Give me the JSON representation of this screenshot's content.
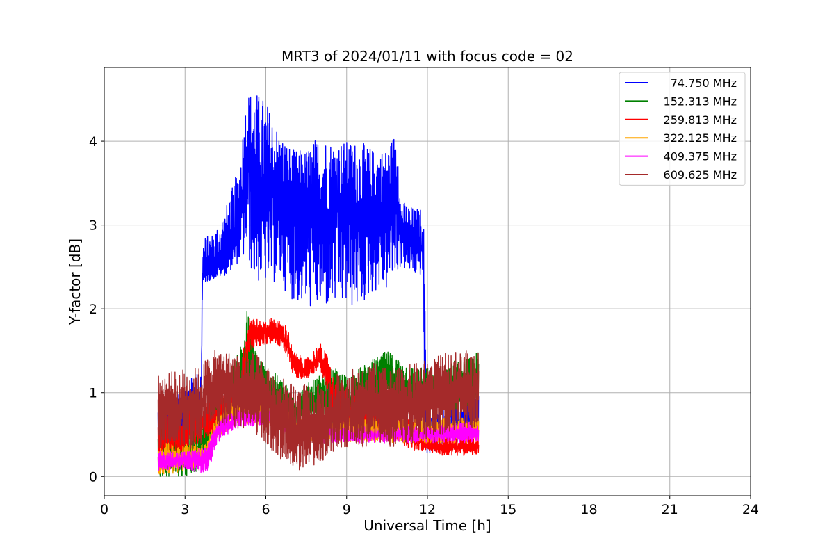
{
  "chart_data": {
    "type": "line",
    "title": "MRT3 of 2024/01/11 with focus code = 02",
    "xlabel": "Universal Time [h]",
    "ylabel": "Y-factor [dB]",
    "xlim": [
      0,
      24
    ],
    "ylim": [
      -0.23,
      4.88
    ],
    "x_ticks": [
      0,
      3,
      6,
      9,
      12,
      15,
      18,
      21,
      24
    ],
    "y_ticks": [
      0,
      1,
      2,
      3,
      4
    ],
    "grid": true,
    "legend_position": "top-right",
    "series": [
      {
        "name": "74.750 MHz",
        "color": "#0000ff",
        "x": [
          2.0,
          3.0,
          3.6,
          3.65,
          4.0,
          4.5,
          5.0,
          5.3,
          5.6,
          6.0,
          6.5,
          7.0,
          7.5,
          8.0,
          8.5,
          9.0,
          9.5,
          10.0,
          10.5,
          10.9,
          11.0,
          11.5,
          11.85,
          11.9,
          12.0,
          12.5,
          13.0,
          13.5,
          13.9
        ],
        "y": [
          0.5,
          0.7,
          0.9,
          2.4,
          2.5,
          2.6,
          3.0,
          3.8,
          3.5,
          3.3,
          3.4,
          3.1,
          3.2,
          3.0,
          3.2,
          3.3,
          3.1,
          3.2,
          3.3,
          3.4,
          2.9,
          2.8,
          2.7,
          0.8,
          0.4,
          0.5,
          0.6,
          0.7,
          0.8
        ],
        "min": [
          0.1,
          0.3,
          0.5,
          2.3,
          2.35,
          2.4,
          2.55,
          2.6,
          2.3,
          2.3,
          2.3,
          2.1,
          2.0,
          2.0,
          2.0,
          2.0,
          2.0,
          2.2,
          2.2,
          2.4,
          2.5,
          2.4,
          2.4,
          0.4,
          0.25,
          0.35,
          0.4,
          0.45,
          0.5
        ],
        "max": [
          0.9,
          1.1,
          1.3,
          2.85,
          2.9,
          3.2,
          3.7,
          4.6,
          4.6,
          4.5,
          4.1,
          3.9,
          3.9,
          4.1,
          4.0,
          4.0,
          4.0,
          3.9,
          3.9,
          4.2,
          3.3,
          3.2,
          3.2,
          2.2,
          0.7,
          0.8,
          0.9,
          0.95,
          1.0
        ]
      },
      {
        "name": "152.313 MHz",
        "color": "#008000",
        "x": [
          2.0,
          3.0,
          3.5,
          4.0,
          4.5,
          5.0,
          5.3,
          5.6,
          6.0,
          6.5,
          7.0,
          7.5,
          8.0,
          8.5,
          9.0,
          9.5,
          10.0,
          10.5,
          11.0,
          11.5,
          12.0,
          12.5,
          13.0,
          13.5,
          13.9
        ],
        "y": [
          0.3,
          0.2,
          0.3,
          0.6,
          0.8,
          1.0,
          1.4,
          1.2,
          1.0,
          0.9,
          0.8,
          0.8,
          0.9,
          0.9,
          0.9,
          1.0,
          1.1,
          1.2,
          1.1,
          1.0,
          1.0,
          1.0,
          1.1,
          1.1,
          1.2
        ],
        "min": [
          0.0,
          0.0,
          0.05,
          0.4,
          0.6,
          0.7,
          0.9,
          0.8,
          0.7,
          0.6,
          0.6,
          0.6,
          0.6,
          0.6,
          0.7,
          0.7,
          0.8,
          0.9,
          0.8,
          0.7,
          0.8,
          0.8,
          0.8,
          0.8,
          0.9
        ],
        "max": [
          0.8,
          0.6,
          0.7,
          0.9,
          1.1,
          1.5,
          2.0,
          1.6,
          1.3,
          1.2,
          1.0,
          1.1,
          1.2,
          1.3,
          1.2,
          1.3,
          1.4,
          1.5,
          1.4,
          1.3,
          1.3,
          1.3,
          1.4,
          1.4,
          1.5
        ]
      },
      {
        "name": "259.813 MHz",
        "color": "#ff0000",
        "x": [
          2.0,
          3.0,
          3.5,
          4.0,
          4.5,
          5.0,
          5.4,
          5.8,
          6.3,
          6.8,
          7.0,
          7.5,
          8.0,
          8.3,
          8.5,
          9.0,
          9.5,
          10.0,
          10.5,
          11.0,
          11.5,
          12.0,
          12.5,
          13.0,
          13.5,
          13.9
        ],
        "y": [
          0.4,
          0.5,
          0.6,
          0.7,
          0.8,
          0.9,
          1.75,
          1.7,
          1.75,
          1.6,
          1.35,
          1.25,
          1.4,
          1.2,
          0.9,
          0.8,
          0.7,
          0.65,
          0.6,
          0.55,
          0.45,
          0.4,
          0.35,
          0.35,
          0.35,
          0.35
        ],
        "min": [
          0.2,
          0.3,
          0.4,
          0.5,
          0.6,
          0.7,
          1.5,
          1.55,
          1.6,
          1.45,
          1.2,
          1.15,
          1.3,
          1.0,
          0.7,
          0.6,
          0.5,
          0.5,
          0.45,
          0.4,
          0.3,
          0.3,
          0.25,
          0.25,
          0.25,
          0.25
        ],
        "max": [
          0.7,
          0.8,
          0.9,
          1.0,
          1.1,
          1.2,
          1.95,
          1.85,
          1.9,
          1.8,
          1.5,
          1.4,
          1.6,
          1.45,
          1.2,
          1.05,
          0.95,
          0.85,
          0.8,
          0.75,
          0.65,
          0.55,
          0.5,
          0.5,
          0.5,
          0.5
        ]
      },
      {
        "name": "322.125 MHz",
        "color": "#ffa500",
        "x": [
          2.0,
          3.0,
          3.8,
          4.2,
          4.6,
          5.0,
          5.5,
          6.0,
          6.5,
          7.0,
          8.0,
          9.0,
          10.0,
          11.0,
          12.0,
          13.0,
          13.9
        ],
        "y": [
          0.2,
          0.2,
          0.25,
          0.6,
          0.7,
          0.8,
          0.75,
          0.75,
          0.7,
          0.6,
          0.55,
          0.55,
          0.55,
          0.55,
          0.55,
          0.55,
          0.55
        ],
        "min": [
          0.02,
          0.05,
          0.1,
          0.45,
          0.55,
          0.65,
          0.6,
          0.6,
          0.55,
          0.45,
          0.4,
          0.4,
          0.4,
          0.4,
          0.4,
          0.4,
          0.4
        ],
        "max": [
          0.4,
          0.4,
          0.4,
          0.75,
          0.85,
          0.95,
          0.95,
          0.9,
          0.85,
          0.75,
          0.7,
          0.7,
          0.7,
          0.7,
          0.7,
          0.7,
          0.7
        ]
      },
      {
        "name": "409.375 MHz",
        "color": "#ff00ff",
        "x": [
          2.0,
          3.0,
          3.8,
          4.2,
          4.6,
          5.0,
          5.5,
          6.0,
          6.5,
          7.0,
          8.0,
          9.0,
          10.0,
          11.0,
          12.0,
          13.0,
          13.9
        ],
        "y": [
          0.15,
          0.2,
          0.2,
          0.55,
          0.6,
          0.7,
          0.7,
          0.7,
          0.65,
          0.55,
          0.5,
          0.5,
          0.5,
          0.5,
          0.5,
          0.5,
          0.5
        ],
        "min": [
          0.05,
          0.1,
          0.0,
          0.4,
          0.5,
          0.6,
          0.6,
          0.6,
          0.55,
          0.45,
          0.4,
          0.4,
          0.4,
          0.4,
          0.4,
          0.4,
          0.4
        ],
        "max": [
          0.3,
          0.3,
          0.35,
          0.65,
          0.75,
          0.8,
          0.8,
          0.8,
          0.75,
          0.65,
          0.6,
          0.6,
          0.6,
          0.6,
          0.6,
          0.65,
          0.65
        ]
      },
      {
        "name": "609.625 MHz",
        "color": "#a52a2a",
        "x": [
          2.0,
          2.5,
          3.0,
          3.5,
          4.0,
          4.5,
          5.0,
          5.5,
          6.0,
          6.5,
          7.0,
          7.5,
          8.0,
          8.5,
          9.0,
          9.5,
          10.0,
          10.5,
          11.0,
          11.5,
          12.0,
          12.5,
          13.0,
          13.5,
          13.9
        ],
        "y": [
          0.8,
          0.8,
          0.8,
          0.8,
          1.1,
          1.1,
          1.0,
          1.0,
          0.9,
          0.7,
          0.5,
          0.55,
          0.6,
          0.7,
          0.75,
          0.8,
          0.8,
          0.8,
          0.8,
          0.85,
          0.9,
          0.95,
          1.0,
          1.0,
          1.05
        ],
        "min": [
          0.3,
          0.4,
          0.35,
          0.3,
          0.6,
          0.6,
          0.55,
          0.55,
          0.4,
          0.2,
          0.05,
          0.1,
          0.15,
          0.3,
          0.35,
          0.35,
          0.35,
          0.35,
          0.35,
          0.4,
          0.45,
          0.5,
          0.55,
          0.55,
          0.6
        ],
        "max": [
          1.2,
          1.25,
          1.3,
          1.3,
          1.5,
          1.5,
          1.45,
          1.5,
          1.35,
          1.2,
          1.1,
          1.1,
          1.1,
          1.2,
          1.3,
          1.3,
          1.35,
          1.3,
          1.3,
          1.35,
          1.4,
          1.45,
          1.5,
          1.5,
          1.5
        ]
      }
    ]
  }
}
